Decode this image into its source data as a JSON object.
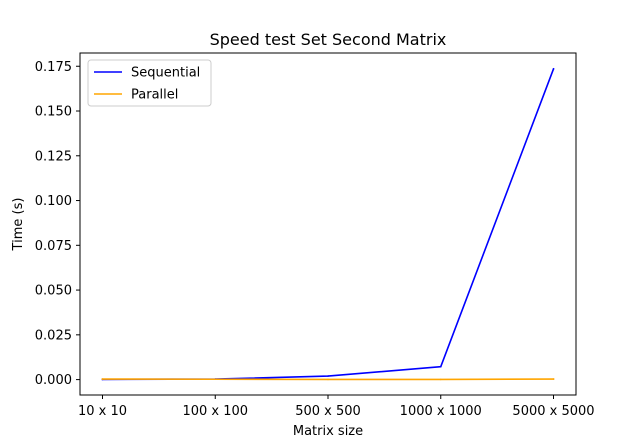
{
  "chart_data": {
    "type": "line",
    "title": "Speed test Set Second Matrix",
    "xlabel": "Matrix size",
    "ylabel": "Time (s)",
    "categories": [
      "10 x 10",
      "100 x 100",
      "500 x 500",
      "1000 x 1000",
      "5000 x 5000"
    ],
    "series": [
      {
        "name": "Sequential",
        "color": "#0000ff",
        "values": [
          0.0001,
          0.0003,
          0.002,
          0.0072,
          0.1735
        ]
      },
      {
        "name": "Parallel",
        "color": "#ffa500",
        "values": [
          0.0003,
          0.0002,
          0.0001,
          0.0001,
          0.0003
        ]
      }
    ],
    "yticks": [
      0.0,
      0.025,
      0.05,
      0.075,
      0.1,
      0.125,
      0.15,
      0.175
    ],
    "ytick_labels": [
      "0.000",
      "0.025",
      "0.050",
      "0.075",
      "0.100",
      "0.125",
      "0.150",
      "0.175"
    ],
    "ylim": [
      -0.0086,
      0.1824
    ],
    "grid": false,
    "legend_position": "upper-left"
  }
}
